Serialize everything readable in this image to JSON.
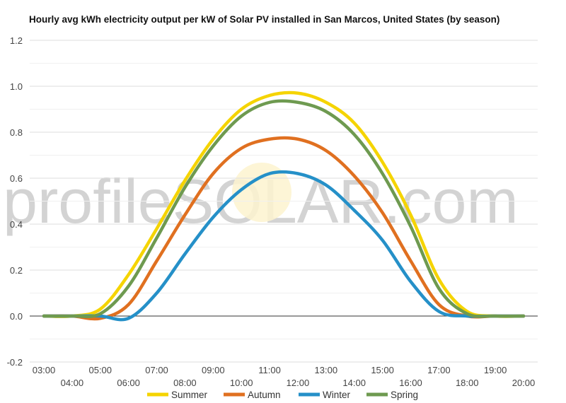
{
  "chart_data": {
    "type": "line",
    "title": "Hourly avg kWh electricity output per kW of Solar PV installed in San Marcos, United States (by season)",
    "xlabel": "",
    "ylabel": "",
    "ylim": [
      -0.2,
      1.2
    ],
    "yticks": [
      -0.2,
      0.0,
      0.2,
      0.4,
      0.6,
      0.8,
      1.0,
      1.2
    ],
    "x": [
      "03:00",
      "04:00",
      "05:00",
      "06:00",
      "07:00",
      "08:00",
      "09:00",
      "10:00",
      "11:00",
      "12:00",
      "13:00",
      "14:00",
      "15:00",
      "16:00",
      "17:00",
      "18:00",
      "19:00",
      "20:00"
    ],
    "grid": true,
    "legend_position": "bottom",
    "watermark": "profileSOLAR.com",
    "series": [
      {
        "name": "Summer",
        "color": "#f5d400",
        "values": [
          0.0,
          0.0,
          0.03,
          0.18,
          0.38,
          0.59,
          0.77,
          0.9,
          0.96,
          0.97,
          0.93,
          0.84,
          0.67,
          0.44,
          0.16,
          0.02,
          0.0,
          0.0
        ]
      },
      {
        "name": "Autumn",
        "color": "#e07020",
        "values": [
          0.0,
          0.0,
          -0.01,
          0.05,
          0.24,
          0.44,
          0.62,
          0.73,
          0.77,
          0.77,
          0.72,
          0.61,
          0.45,
          0.24,
          0.05,
          0.0,
          0.0,
          0.0
        ]
      },
      {
        "name": "Winter",
        "color": "#2590c8",
        "values": [
          0.0,
          0.0,
          0.0,
          -0.01,
          0.1,
          0.27,
          0.43,
          0.55,
          0.62,
          0.62,
          0.57,
          0.46,
          0.33,
          0.15,
          0.02,
          0.0,
          0.0,
          0.0
        ]
      },
      {
        "name": "Spring",
        "color": "#6e9a50",
        "values": [
          0.0,
          0.0,
          0.01,
          0.13,
          0.34,
          0.56,
          0.74,
          0.87,
          0.93,
          0.93,
          0.89,
          0.79,
          0.62,
          0.39,
          0.12,
          0.01,
          0.0,
          0.0
        ]
      }
    ]
  }
}
